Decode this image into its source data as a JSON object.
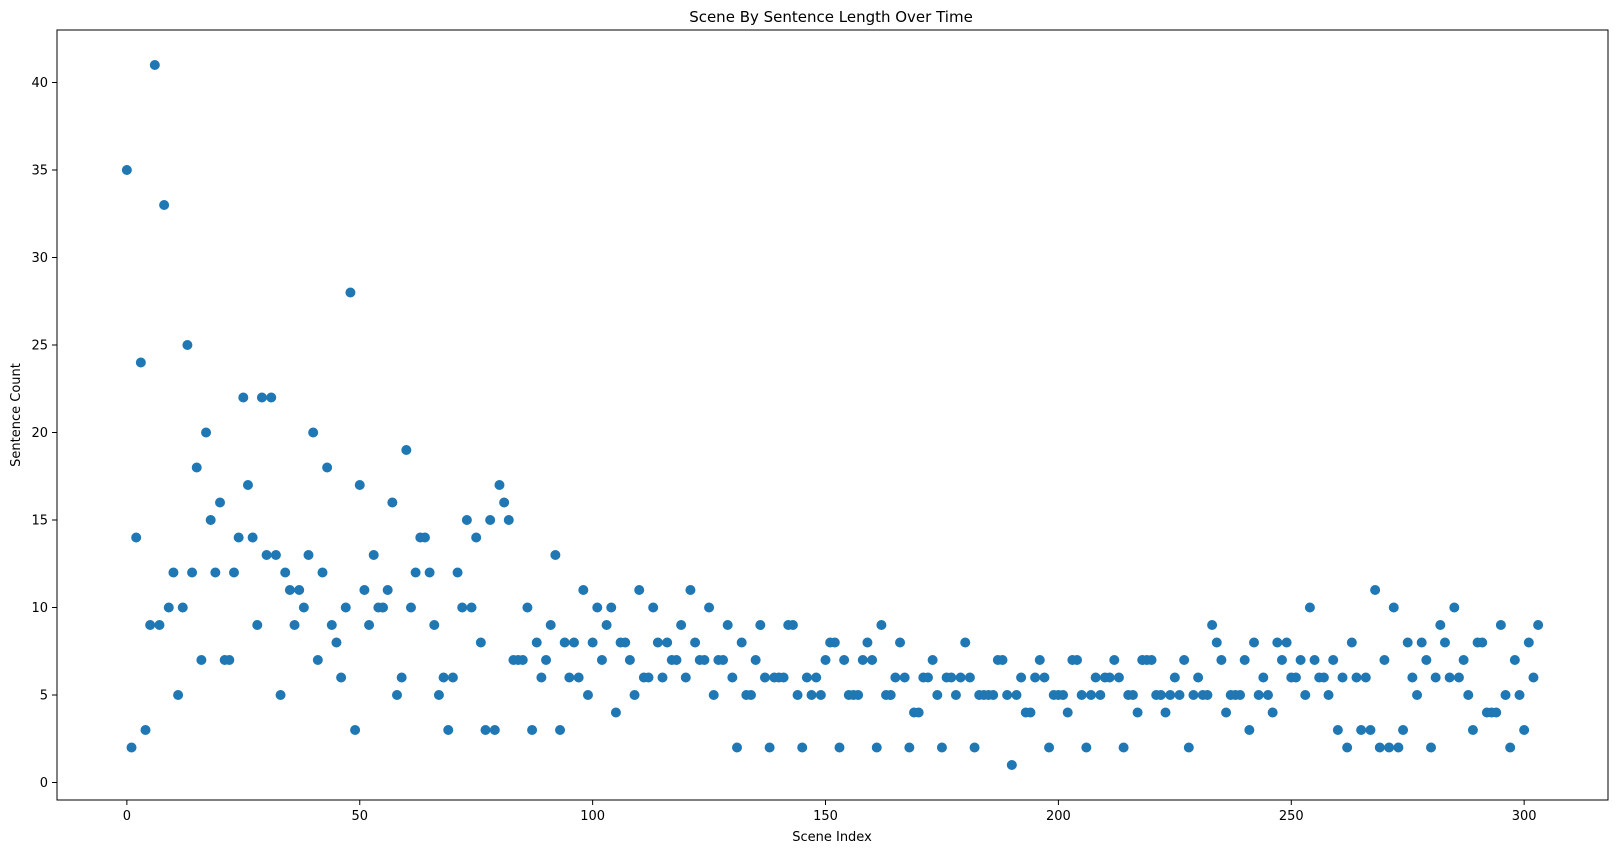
{
  "chart_data": {
    "type": "scatter",
    "title": "Scene By Sentence Length Over Time",
    "xlabel": "Scene Index",
    "ylabel": "Sentence Count",
    "xlim": [
      -15,
      318
    ],
    "ylim": [
      -1,
      43
    ],
    "xticks": [
      0,
      50,
      100,
      150,
      200,
      250,
      300
    ],
    "yticks": [
      0,
      5,
      10,
      15,
      20,
      25,
      30,
      35,
      40
    ],
    "grid": false,
    "legend": "none",
    "marker_color": "#1f77b4",
    "series": [
      {
        "x": [
          0,
          1,
          2,
          3,
          4,
          5,
          6,
          7,
          8,
          9,
          10,
          11,
          12,
          13,
          14,
          15,
          16,
          17,
          18,
          19,
          20,
          21,
          22,
          23,
          24,
          25,
          26,
          27,
          28,
          29,
          30,
          31,
          32,
          33,
          34,
          35,
          36,
          37,
          38,
          39,
          40,
          41,
          42,
          43,
          44,
          45,
          46,
          47,
          48,
          49,
          50,
          51,
          52,
          53,
          54,
          55,
          56,
          57,
          58,
          59,
          60,
          61,
          62,
          63,
          64,
          65,
          66,
          67,
          68,
          69,
          70,
          71,
          72,
          73,
          74,
          75,
          76,
          77,
          78,
          79,
          80,
          81,
          82,
          83,
          84,
          85,
          86,
          87,
          88,
          89,
          90,
          91,
          92,
          93,
          94,
          95,
          96,
          97,
          98,
          99,
          100,
          101,
          102,
          103,
          104,
          105,
          106,
          107,
          108,
          109,
          110,
          111,
          112,
          113,
          114,
          115,
          116,
          117,
          118,
          119,
          120,
          121,
          122,
          123,
          124,
          125,
          126,
          127,
          128,
          129,
          130,
          131,
          132,
          133,
          134,
          135,
          136,
          137,
          138,
          139,
          140,
          141,
          142,
          143,
          144,
          145,
          146,
          147,
          148,
          149,
          150,
          151,
          152,
          153,
          154,
          155,
          156,
          157,
          158,
          159,
          160,
          161,
          162,
          163,
          164,
          165,
          166,
          167,
          168,
          169,
          170,
          171,
          172,
          173,
          174,
          175,
          176,
          177,
          178,
          179,
          180,
          181,
          182,
          183,
          184,
          185,
          186,
          187,
          188,
          189,
          190,
          191,
          192,
          193,
          194,
          195,
          196,
          197,
          198,
          199,
          200,
          201,
          202,
          203,
          204,
          205,
          206,
          207,
          208,
          209,
          210,
          211,
          212,
          213,
          214,
          215,
          216,
          217,
          218,
          219,
          220,
          221,
          222,
          223,
          224,
          225,
          226,
          227,
          228,
          229,
          230,
          231,
          232,
          233,
          234,
          235,
          236,
          237,
          238,
          239,
          240,
          241,
          242,
          243,
          244,
          245,
          246,
          247,
          248,
          249,
          250,
          251,
          252,
          253,
          254,
          255,
          256,
          257,
          258,
          259,
          260,
          261,
          262,
          263,
          264,
          265,
          266,
          267,
          268,
          269,
          270,
          271,
          272,
          273,
          274,
          275,
          276,
          277,
          278,
          279,
          280,
          281,
          282,
          283,
          284,
          285,
          286,
          287,
          288,
          289,
          290,
          291,
          292,
          293,
          294,
          295,
          296,
          297,
          298,
          299,
          300,
          301,
          302,
          303
        ],
        "y": [
          35,
          2,
          14,
          24,
          3,
          9,
          41,
          9,
          33,
          10,
          12,
          5,
          10,
          25,
          12,
          18,
          7,
          20,
          15,
          12,
          16,
          7,
          7,
          12,
          14,
          22,
          17,
          14,
          9,
          22,
          13,
          22,
          13,
          5,
          12,
          11,
          9,
          11,
          10,
          13,
          20,
          7,
          12,
          18,
          9,
          8,
          6,
          10,
          28,
          3,
          17,
          11,
          9,
          13,
          10,
          10,
          11,
          16,
          5,
          6,
          19,
          10,
          12,
          14,
          14,
          12,
          9,
          5,
          6,
          3,
          6,
          12,
          10,
          15,
          10,
          14,
          8,
          3,
          15,
          3,
          17,
          16,
          15,
          7,
          7,
          7,
          10,
          3,
          8,
          6,
          7,
          9,
          13,
          3,
          8,
          6,
          8,
          6,
          11,
          5,
          8,
          10,
          7,
          9,
          10,
          4,
          8,
          8,
          7,
          5,
          11,
          6,
          6,
          10,
          8,
          6,
          8,
          7,
          7,
          9,
          6,
          11,
          8,
          7,
          7,
          10,
          5,
          7,
          7,
          9,
          6,
          2,
          8,
          5,
          5,
          7,
          9,
          6,
          2,
          6,
          6,
          6,
          9,
          9,
          5,
          2,
          6,
          5,
          6,
          5,
          7,
          8,
          8,
          2,
          7,
          5,
          5,
          5,
          7,
          8,
          7,
          2,
          9,
          5,
          5,
          6,
          8,
          6,
          2,
          4,
          4,
          6,
          6,
          7,
          5,
          2,
          6,
          6,
          5,
          6,
          8,
          6,
          2,
          5,
          5,
          5,
          5,
          7,
          7,
          5,
          1,
          5,
          6,
          4,
          4,
          6,
          7,
          6,
          2,
          5,
          5,
          5,
          4,
          7,
          7,
          5,
          2,
          5,
          6,
          5,
          6,
          6,
          7,
          6,
          2,
          5,
          5,
          4,
          7,
          7,
          7,
          5,
          5,
          4,
          5,
          6,
          5,
          7,
          2,
          5,
          6,
          5,
          5,
          9,
          8,
          7,
          4,
          5,
          5,
          5,
          7,
          3,
          8,
          5,
          6,
          5,
          4,
          8,
          7,
          8,
          6,
          6,
          7,
          5,
          10,
          7,
          6,
          6,
          5,
          7,
          3,
          6,
          2,
          8,
          6,
          3,
          6,
          3,
          11,
          2,
          7,
          2,
          10,
          2,
          3,
          8,
          6,
          5,
          8,
          7,
          2,
          6,
          9,
          8,
          6,
          10,
          6,
          7,
          5,
          3,
          8,
          8,
          4,
          4,
          4,
          9,
          5,
          2,
          7,
          5,
          3,
          8,
          6,
          9
        ]
      }
    ]
  }
}
